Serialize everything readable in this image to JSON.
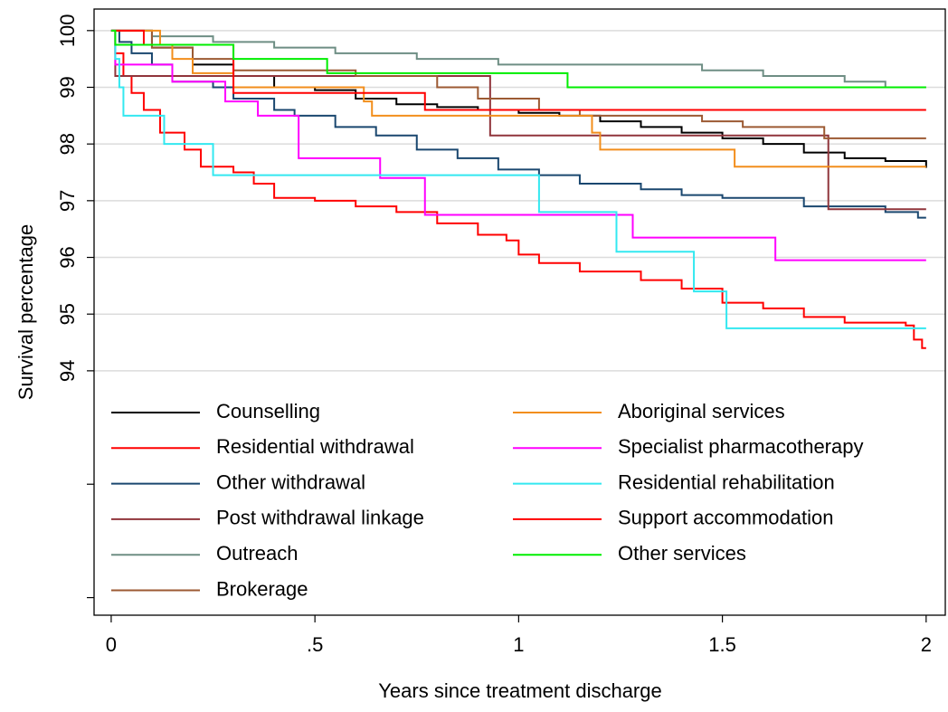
{
  "chart_data": {
    "type": "step-line",
    "x_label": "Years since treatment discharge",
    "y_label": "Survival percentage",
    "xlim": [
      -0.042,
      2.047
    ],
    "ylim": [
      89.69,
      100.38
    ],
    "xticks": [
      0,
      {
        "value": 0.5,
        "label": ".5"
      },
      1,
      1.5,
      2
    ],
    "yticks": [
      {
        "value": 90,
        "label": null
      },
      {
        "value": 92,
        "label": null
      },
      94,
      95,
      96,
      97,
      98,
      99,
      100
    ],
    "grid": true,
    "legend": "bottom",
    "series": [
      {
        "name": "Counselling",
        "color": "#000000",
        "x": [
          0,
          0.1,
          0.2,
          0.3,
          0.4,
          0.5,
          0.6,
          0.7,
          0.8,
          0.9,
          1.0,
          1.1,
          1.2,
          1.3,
          1.4,
          1.5,
          1.6,
          1.7,
          1.8,
          1.9,
          2.0
        ],
        "values": [
          100,
          99.7,
          99.4,
          99.2,
          99.0,
          98.95,
          98.8,
          98.7,
          98.65,
          98.6,
          98.55,
          98.5,
          98.4,
          98.3,
          98.2,
          98.1,
          98.0,
          97.85,
          97.75,
          97.7,
          97.58
        ]
      },
      {
        "name": "Residential withdrawal",
        "color": "#ff0000",
        "x": [
          0,
          0.01,
          0.03,
          0.05,
          0.08,
          0.12,
          0.18,
          0.22,
          0.3,
          0.35,
          0.4,
          0.5,
          0.6,
          0.7,
          0.8,
          0.9,
          0.97,
          1.0,
          1.05,
          1.15,
          1.3,
          1.4,
          1.5,
          1.6,
          1.7,
          1.8,
          1.95,
          1.97,
          1.99,
          2.0
        ],
        "values": [
          100,
          99.6,
          99.2,
          98.9,
          98.6,
          98.2,
          97.9,
          97.6,
          97.5,
          97.3,
          97.05,
          97.0,
          96.9,
          96.8,
          96.6,
          96.4,
          96.3,
          96.05,
          95.9,
          95.75,
          95.6,
          95.45,
          95.2,
          95.1,
          94.95,
          94.85,
          94.8,
          94.55,
          94.4,
          94.4
        ]
      },
      {
        "name": "Other withdrawal",
        "color": "#1a476f",
        "x": [
          0,
          0.02,
          0.05,
          0.1,
          0.15,
          0.25,
          0.3,
          0.4,
          0.45,
          0.55,
          0.65,
          0.75,
          0.85,
          0.95,
          1.05,
          1.15,
          1.3,
          1.4,
          1.5,
          1.7,
          1.9,
          1.98,
          2.0
        ],
        "values": [
          100,
          99.8,
          99.6,
          99.4,
          99.1,
          99.0,
          98.8,
          98.6,
          98.5,
          98.3,
          98.15,
          97.9,
          97.75,
          97.55,
          97.45,
          97.3,
          97.2,
          97.1,
          97.05,
          96.9,
          96.8,
          96.7,
          96.7
        ]
      },
      {
        "name": "Post withdrawal linkage",
        "color": "#90353b",
        "x": [
          0,
          0.01,
          0.93,
          1.76,
          2.0
        ],
        "values": [
          100,
          99.2,
          98.15,
          96.85,
          96.85
        ]
      },
      {
        "name": "Outreach",
        "color": "#6e8e84",
        "x": [
          0,
          0.1,
          0.25,
          0.4,
          0.55,
          0.75,
          0.95,
          1.45,
          1.6,
          1.8,
          1.9,
          2.0
        ],
        "values": [
          100,
          99.9,
          99.8,
          99.7,
          99.6,
          99.5,
          99.4,
          99.3,
          99.2,
          99.1,
          99.0,
          99.0
        ]
      },
      {
        "name": "Brokerage",
        "color": "#9c5a33",
        "x": [
          0,
          0.1,
          0.2,
          0.3,
          0.6,
          0.8,
          0.9,
          1.05,
          1.15,
          1.45,
          1.55,
          1.75,
          2.0
        ],
        "values": [
          100,
          99.7,
          99.5,
          99.3,
          99.2,
          99.0,
          98.8,
          98.6,
          98.5,
          98.4,
          98.3,
          98.1,
          98.1
        ]
      },
      {
        "name": "Aboriginal services",
        "color": "#f28e1c",
        "x": [
          0,
          0.12,
          0.15,
          0.2,
          0.3,
          0.62,
          0.64,
          1.18,
          1.2,
          1.53,
          2.0
        ],
        "values": [
          100,
          99.75,
          99.5,
          99.25,
          99.0,
          98.75,
          98.5,
          98.2,
          97.9,
          97.6,
          97.6
        ]
      },
      {
        "name": "Specialist pharmacotherapy",
        "color": "#ff00ff",
        "x": [
          0,
          0.01,
          0.15,
          0.28,
          0.36,
          0.46,
          0.66,
          0.77,
          1.28,
          1.63,
          2.0
        ],
        "values": [
          100,
          99.4,
          99.1,
          98.75,
          98.5,
          97.75,
          97.4,
          96.75,
          96.35,
          95.95,
          95.95
        ]
      },
      {
        "name": "Residential rehabilitation",
        "color": "#33e8f0",
        "x": [
          0,
          0.01,
          0.02,
          0.03,
          0.13,
          0.25,
          1.05,
          1.24,
          1.43,
          1.51,
          2.0
        ],
        "values": [
          100,
          99.5,
          99.0,
          98.5,
          98.0,
          97.45,
          96.8,
          96.1,
          95.4,
          94.75,
          94.75
        ]
      },
      {
        "name": "Support accommodation",
        "color": "#ff0000",
        "x": [
          0,
          0.08,
          0.3,
          0.77,
          2.0
        ],
        "values": [
          100,
          99.75,
          98.9,
          98.6,
          98.6
        ]
      },
      {
        "name": "Other services",
        "color": "#00ee00",
        "x": [
          0,
          0.01,
          0.3,
          0.53,
          1.12,
          2.0
        ],
        "values": [
          100,
          99.75,
          99.5,
          99.25,
          99.0,
          99.0
        ]
      }
    ]
  }
}
